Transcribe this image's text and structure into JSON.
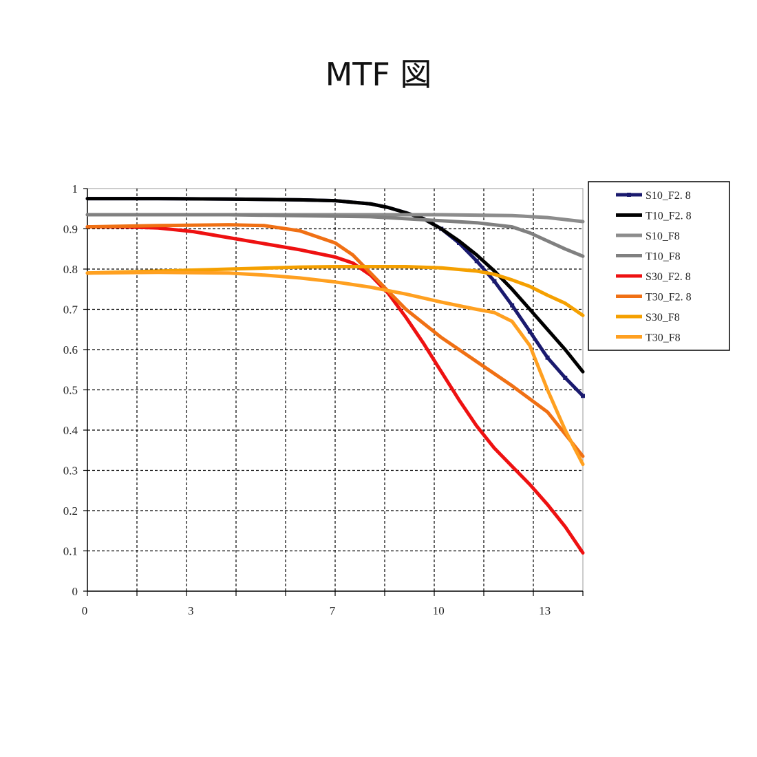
{
  "title": "MTF 図",
  "chart_data": {
    "type": "line",
    "title": "MTF 図",
    "xlabel": "",
    "ylabel": "",
    "xlim": [
      0,
      14
    ],
    "ylim": [
      0,
      1
    ],
    "x_ticks": [
      0,
      3,
      7,
      10,
      13
    ],
    "y_ticks": [
      0,
      0.1,
      0.2,
      0.3,
      0.4,
      0.5,
      0.6,
      0.7,
      0.8,
      0.9,
      1
    ],
    "y_tick_labels": [
      "0",
      "0.1",
      "0.2",
      "0.3",
      "0.4",
      "0.5",
      "0.6",
      "0.7",
      "0.8",
      "0.9",
      "1"
    ],
    "grid": true,
    "legend_position": "right",
    "series": [
      {
        "name": "S10_F2. 8",
        "color": "#1a1a6e",
        "marker": "square",
        "x": [
          0,
          2,
          4,
          6,
          7,
          8,
          8.5,
          9,
          9.5,
          10,
          10.5,
          11,
          11.5,
          12,
          12.5,
          13,
          13.5,
          14
        ],
        "y": [
          0.975,
          0.975,
          0.974,
          0.972,
          0.97,
          0.962,
          0.953,
          0.94,
          0.925,
          0.9,
          0.865,
          0.82,
          0.77,
          0.71,
          0.645,
          0.58,
          0.53,
          0.485
        ]
      },
      {
        "name": "T10_F2. 8",
        "color": "#000000",
        "x": [
          0,
          2,
          4,
          6,
          7,
          8,
          8.5,
          9,
          9.5,
          10,
          10.5,
          11,
          11.5,
          12,
          12.5,
          13,
          13.5,
          14
        ],
        "y": [
          0.975,
          0.975,
          0.974,
          0.972,
          0.97,
          0.962,
          0.953,
          0.94,
          0.925,
          0.9,
          0.87,
          0.835,
          0.795,
          0.75,
          0.7,
          0.65,
          0.6,
          0.545
        ]
      },
      {
        "name": "S10_F8",
        "color": "#8c8c8c",
        "x": [
          0,
          4,
          8,
          10,
          12,
          13,
          14
        ],
        "y": [
          0.935,
          0.935,
          0.935,
          0.935,
          0.933,
          0.928,
          0.918
        ]
      },
      {
        "name": "T10_F8",
        "color": "#808080",
        "x": [
          0,
          4,
          8,
          10,
          11,
          12,
          12.5,
          13,
          13.5,
          14
        ],
        "y": [
          0.935,
          0.935,
          0.93,
          0.92,
          0.915,
          0.905,
          0.89,
          0.87,
          0.85,
          0.832
        ]
      },
      {
        "name": "S30_F2. 8",
        "color": "#ee1111",
        "x": [
          0,
          1,
          2,
          3,
          4,
          5,
          6,
          7,
          7.5,
          8,
          8.5,
          9,
          9.5,
          10,
          10.5,
          11,
          11.5,
          12,
          12.5,
          13,
          13.5,
          14
        ],
        "y": [
          0.905,
          0.905,
          0.902,
          0.893,
          0.878,
          0.863,
          0.848,
          0.83,
          0.815,
          0.785,
          0.74,
          0.68,
          0.615,
          0.545,
          0.475,
          0.41,
          0.355,
          0.31,
          0.265,
          0.215,
          0.16,
          0.095
        ]
      },
      {
        "name": "T30_F2. 8",
        "color": "#f07014",
        "x": [
          0,
          2,
          4,
          5,
          6,
          7,
          7.5,
          8,
          8.5,
          9,
          9.5,
          10,
          11,
          12,
          13,
          14
        ],
        "y": [
          0.905,
          0.908,
          0.91,
          0.908,
          0.895,
          0.865,
          0.835,
          0.79,
          0.745,
          0.7,
          0.665,
          0.63,
          0.57,
          0.51,
          0.445,
          0.335
        ]
      },
      {
        "name": "S30_F8",
        "color": "#f5a000",
        "x": [
          0,
          2,
          4,
          6,
          7,
          8,
          9,
          10,
          11,
          11.5,
          12,
          12.5,
          13,
          13.5,
          14
        ],
        "y": [
          0.79,
          0.795,
          0.8,
          0.805,
          0.806,
          0.806,
          0.806,
          0.803,
          0.795,
          0.787,
          0.773,
          0.757,
          0.735,
          0.715,
          0.685
        ]
      },
      {
        "name": "T30_F8",
        "color": "#ffa020",
        "x": [
          0,
          2,
          4,
          5,
          6,
          7,
          8,
          9,
          10,
          11,
          11.5,
          12,
          12.5,
          13,
          13.5,
          14
        ],
        "y": [
          0.79,
          0.792,
          0.79,
          0.785,
          0.778,
          0.768,
          0.755,
          0.738,
          0.718,
          0.7,
          0.692,
          0.67,
          0.61,
          0.5,
          0.4,
          0.315
        ]
      }
    ]
  }
}
